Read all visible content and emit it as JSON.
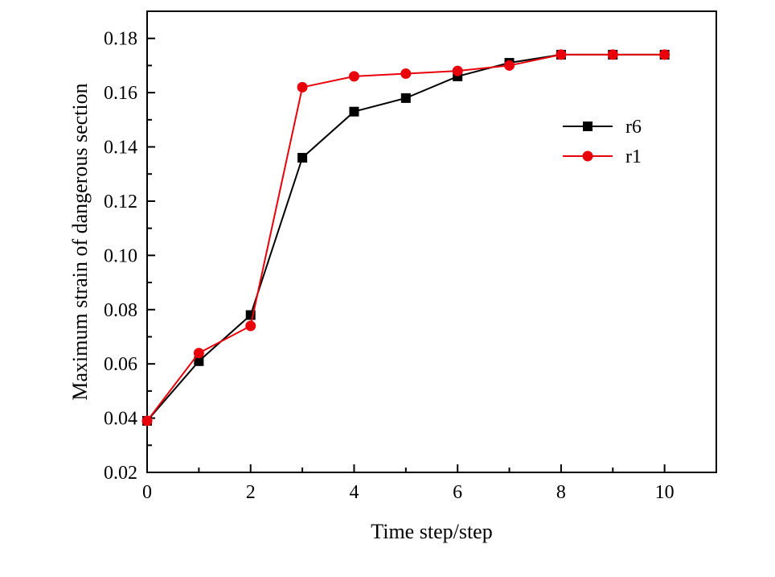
{
  "chart_data": {
    "type": "line",
    "title": "",
    "xlabel": "Time step/step",
    "ylabel": "Maximum strain of dangerous section",
    "xlim": [
      0,
      11
    ],
    "ylim": [
      0.02,
      0.19
    ],
    "x_ticks": [
      0,
      2,
      4,
      6,
      8,
      10
    ],
    "x_tick_labels": [
      "0",
      "2",
      "4",
      "6",
      "8",
      "10"
    ],
    "y_ticks": [
      0.02,
      0.04,
      0.06,
      0.08,
      0.1,
      0.12,
      0.14,
      0.16,
      0.18
    ],
    "y_tick_labels": [
      "0.02",
      "0.04",
      "0.06",
      "0.08",
      "0.10",
      "0.12",
      "0.14",
      "0.16",
      "0.18"
    ],
    "grid": false,
    "legend_position": "right",
    "x": [
      0,
      1,
      2,
      3,
      4,
      5,
      6,
      7,
      8,
      9,
      10
    ],
    "series": [
      {
        "name": "r6",
        "color": "#000000",
        "marker": "square",
        "values": [
          0.039,
          0.061,
          0.078,
          0.136,
          0.153,
          0.158,
          0.166,
          0.171,
          0.174,
          0.174,
          0.174
        ]
      },
      {
        "name": "r1",
        "color": "#e8000b",
        "marker": "circle",
        "values": [
          0.039,
          0.064,
          0.074,
          0.162,
          0.166,
          0.167,
          0.168,
          0.17,
          0.174,
          0.174,
          0.174
        ]
      }
    ]
  }
}
